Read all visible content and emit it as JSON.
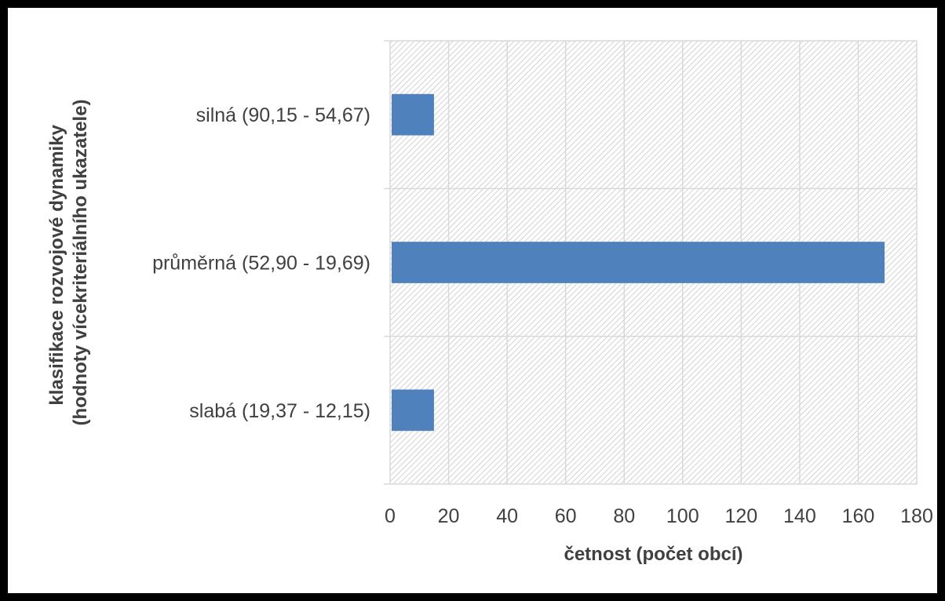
{
  "chart_data": {
    "type": "bar",
    "orientation": "horizontal",
    "categories": [
      "slabá (19,37 - 12,15)",
      "průměrná (52,90 - 19,69)",
      "silná (90,15 - 54,67)"
    ],
    "values": [
      15,
      169,
      15
    ],
    "xlabel": "četnost (počet obcí)",
    "ylabel_lines": [
      "klasifikace rozvojové dynamiky",
      "(hodnoty vícekriteriálního ukazatele)"
    ],
    "xlim": [
      0,
      180
    ],
    "xticks": [
      0,
      20,
      40,
      60,
      80,
      100,
      120,
      140,
      160,
      180
    ],
    "grid": true,
    "bar_color": "#4F81BD",
    "plot_background": "hatched light gray"
  }
}
